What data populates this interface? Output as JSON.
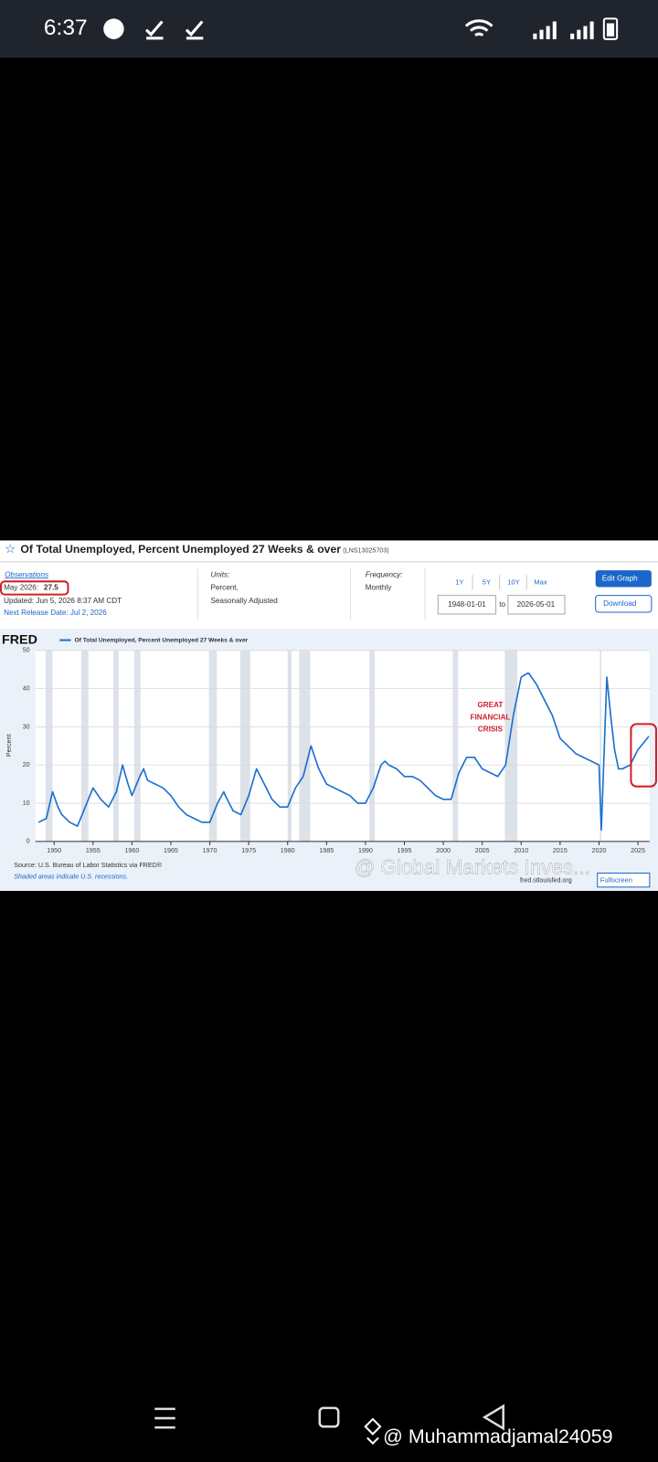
{
  "status_bar": {
    "time": "6:37"
  },
  "header": {
    "title": "Of Total Unemployed, Percent Unemployed 27 Weeks & over",
    "series_id": "(LNS13025703)",
    "observations": "Observations",
    "latest_date": "May 2026:",
    "latest_value": "27.5",
    "updated": "Updated: Jun 5, 2026 8:37 AM CDT",
    "next_release": "Next Release Date: Jul 2, 2026",
    "units_label": "Units:",
    "units_1": "Percent,",
    "units_2": "Seasonally Adjusted",
    "frequency_label": "Frequency:",
    "frequency": "Monthly",
    "ranges": [
      "1Y",
      "5Y",
      "10Y",
      "Max"
    ],
    "start_date": "1948-01-01",
    "to": "to",
    "end_date": "2026-05-01",
    "edit_button": "Edit Graph",
    "download_button": "Download"
  },
  "chart_data": {
    "type": "line",
    "logo": "FRED",
    "ylabel": "Percent",
    "x": [
      1948,
      1949,
      1949.8,
      1950.5,
      1951,
      1952,
      1953,
      1954,
      1955,
      1956,
      1957,
      1958,
      1958.8,
      1959.5,
      1960,
      1961,
      1961.5,
      1962,
      1963,
      1964,
      1965,
      1966,
      1967,
      1968,
      1969,
      1970,
      1971,
      1971.8,
      1972,
      1973,
      1974,
      1975,
      1976,
      1977,
      1978,
      1979,
      1980,
      1981,
      1982,
      1983,
      1983.5,
      1984,
      1985,
      1986,
      1987,
      1988,
      1989,
      1990,
      1991,
      1992,
      1992.5,
      1993,
      1994,
      1995,
      1996,
      1997,
      1998,
      1999,
      2000,
      2001,
      2002,
      2003,
      2004,
      2005,
      2006,
      2007,
      2008,
      2009,
      2010,
      2010.8,
      2011,
      2012,
      2013,
      2014,
      2015,
      2016,
      2017,
      2018,
      2019,
      2020,
      2020.3,
      2021,
      2021.5,
      2022,
      2022.5,
      2023,
      2024,
      2025,
      2026.4
    ],
    "series": [
      {
        "name": "Of Total Unemployed, Percent Unemployed 27 Weeks & over",
        "color": "#1a6fd1",
        "values": [
          5,
          6,
          13,
          9,
          7,
          5,
          4,
          9,
          14,
          11,
          9,
          13,
          20,
          15,
          12,
          17,
          19,
          16,
          15,
          14,
          12,
          9,
          7,
          6,
          5,
          5,
          10,
          13,
          12,
          8,
          7,
          12,
          19,
          15,
          11,
          9,
          9,
          14,
          17,
          25,
          22,
          19,
          15,
          14,
          13,
          12,
          10,
          10,
          14,
          20,
          21,
          20,
          19,
          17,
          17,
          16,
          14,
          12,
          11,
          11,
          18,
          22,
          22,
          19,
          18,
          17,
          20,
          33,
          43,
          44,
          44,
          41,
          37,
          33,
          27,
          25,
          23,
          22,
          21,
          20,
          3,
          43,
          33,
          24,
          19,
          19,
          20,
          24,
          27.5
        ]
      }
    ],
    "recessions": [
      [
        1948.9,
        1949.8
      ],
      [
        1953.5,
        1954.4
      ],
      [
        1957.6,
        1958.3
      ],
      [
        1960.3,
        1961.1
      ],
      [
        1969.9,
        1970.9
      ],
      [
        1973.9,
        1975.2
      ],
      [
        1980,
        1980.5
      ],
      [
        1981.5,
        1982.9
      ],
      [
        1990.5,
        1991.2
      ],
      [
        2001.2,
        2001.9
      ],
      [
        2007.9,
        2009.5
      ],
      [
        2020.1,
        2020.3
      ]
    ],
    "xlim": [
      1947.6,
      2026.5
    ],
    "ylim": [
      0,
      50
    ],
    "xticks": [
      1950,
      1955,
      1960,
      1965,
      1970,
      1975,
      1980,
      1985,
      1990,
      1995,
      2000,
      2005,
      2010,
      2015,
      2020,
      2025
    ],
    "yticks": [
      0,
      10,
      20,
      30,
      40,
      50
    ],
    "grid": true,
    "annotation": [
      "GREAT",
      "FINANCIAL",
      "CRISIS"
    ],
    "source": "Source: U.S. Bureau of Labor Statistics via FRED®",
    "note": "Shaded areas indicate U.S. recessions.",
    "site": "fred.stlouisfed.org",
    "fullscreen": "Fullscreen"
  },
  "watermark": "@ Global Markets Inves...",
  "credit": "@ Muhammadjamal24059"
}
